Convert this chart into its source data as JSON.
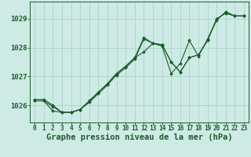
{
  "background_color": "#ceeae4",
  "grid_color": "#a8ccc8",
  "line_color": "#1a5c2a",
  "xlabel": "Graphe pression niveau de la mer (hPa)",
  "xlabel_fontsize": 7.5,
  "ylabel_fontsize": 6.5,
  "tick_fontsize": 5.5,
  "xlim": [
    -0.5,
    23.5
  ],
  "ylim": [
    1025.4,
    1029.6
  ],
  "yticks": [
    1026,
    1027,
    1028,
    1029
  ],
  "xticks": [
    0,
    1,
    2,
    3,
    4,
    5,
    6,
    7,
    8,
    9,
    10,
    11,
    12,
    13,
    14,
    15,
    16,
    17,
    18,
    19,
    20,
    21,
    22,
    23
  ],
  "series": [
    [
      1026.2,
      1026.2,
      1026.0,
      1025.75,
      1025.75,
      1025.85,
      1026.15,
      1026.45,
      1026.75,
      1027.1,
      1027.35,
      1027.65,
      1027.85,
      1028.15,
      1028.1,
      1027.5,
      1027.15,
      1027.65,
      1027.75,
      1028.25,
      1029.0,
      1029.2,
      1029.1,
      1029.1
    ],
    [
      1026.15,
      1026.15,
      1025.95,
      1025.75,
      1025.75,
      1025.85,
      1026.15,
      1026.45,
      1026.75,
      1027.1,
      1027.35,
      1027.65,
      1028.35,
      1028.15,
      1028.1,
      1027.5,
      1027.15,
      1027.65,
      1027.75,
      1028.25,
      1029.0,
      1029.2,
      1029.1,
      1029.1
    ],
    [
      1026.15,
      1026.15,
      1025.8,
      1025.75,
      1025.75,
      1025.85,
      1026.1,
      1026.4,
      1026.7,
      1027.05,
      1027.3,
      1027.6,
      1028.3,
      1028.15,
      1028.05,
      1027.1,
      1027.45,
      1028.25,
      1027.7,
      1028.3,
      1028.95,
      1029.25,
      1029.1,
      1029.1
    ]
  ]
}
